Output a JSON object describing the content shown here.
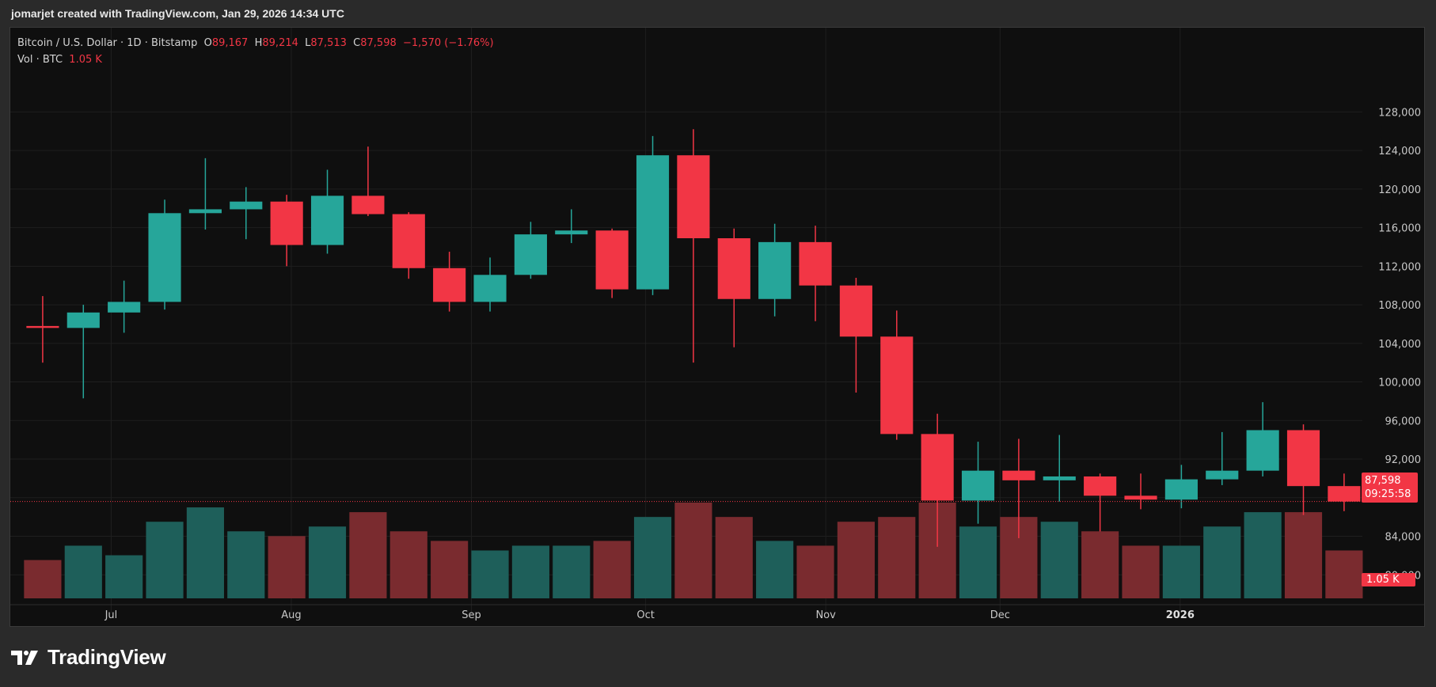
{
  "header": {
    "created_by": "jomarjet created with TradingView.com, Jan 29, 2026 14:34 UTC"
  },
  "legend": {
    "symbol": "Bitcoin / U.S. Dollar · 1D · Bitstamp",
    "open_label": "O",
    "open": "89,167",
    "high_label": "H",
    "high": "89,214",
    "low_label": "L",
    "low": "87,513",
    "close_label": "C",
    "close": "87,598",
    "change": "−1,570 (−1.76%)",
    "vol_label": "Vol · BTC",
    "vol": "1.05 K"
  },
  "price_badge": {
    "price": "87,598",
    "countdown": "09:25:58"
  },
  "vol_badge": "1.05 K",
  "footer": {
    "brand": "TradingView"
  },
  "colors": {
    "up": "#26a69a",
    "down": "#f23645",
    "vol_up": "#1e5f5a",
    "vol_down": "#7a2b2f"
  },
  "chart_data": {
    "type": "candlestick",
    "title": "Bitcoin / U.S. Dollar · 1D · Bitstamp",
    "ylim": [
      76000,
      130000
    ],
    "y_ticks": [
      "128,000",
      "124,000",
      "120,000",
      "116,000",
      "112,000",
      "108,000",
      "104,000",
      "100,000",
      "96,000",
      "92,000",
      "84,000",
      "80,000"
    ],
    "x_tick_labels": [
      {
        "label": "Jul",
        "date": "2025-07-01"
      },
      {
        "label": "Aug",
        "date": "2025-08-01"
      },
      {
        "label": "Sep",
        "date": "2025-09-01"
      },
      {
        "label": "Oct",
        "date": "2025-10-01"
      },
      {
        "label": "Nov",
        "date": "2025-11-01"
      },
      {
        "label": "Dec",
        "date": "2025-12-01"
      },
      {
        "label": "2026",
        "date": "2026-01-01"
      }
    ],
    "last_price": 87598,
    "weekly_closes": [
      {
        "date": "2025-06-16",
        "open": 105800,
        "high": 108900,
        "low": 102000,
        "close": 105600,
        "volume": 0.4
      },
      {
        "date": "2025-06-23",
        "open": 105600,
        "high": 108000,
        "low": 98300,
        "close": 107200,
        "volume": 0.55
      },
      {
        "date": "2025-06-30",
        "open": 107200,
        "high": 110500,
        "low": 105100,
        "close": 108300,
        "volume": 0.45
      },
      {
        "date": "2025-07-07",
        "open": 108300,
        "high": 118900,
        "low": 107500,
        "close": 117500,
        "volume": 0.8
      },
      {
        "date": "2025-07-14",
        "open": 117500,
        "high": 123200,
        "low": 115800,
        "close": 117900,
        "volume": 0.95
      },
      {
        "date": "2025-07-21",
        "open": 117900,
        "high": 120200,
        "low": 114800,
        "close": 118700,
        "volume": 0.7
      },
      {
        "date": "2025-07-28",
        "open": 118700,
        "high": 119400,
        "low": 112000,
        "close": 114200,
        "volume": 0.65
      },
      {
        "date": "2025-08-04",
        "open": 114200,
        "high": 122000,
        "low": 113300,
        "close": 119300,
        "volume": 0.75
      },
      {
        "date": "2025-08-11",
        "open": 119300,
        "high": 124400,
        "low": 117200,
        "close": 117400,
        "volume": 0.9
      },
      {
        "date": "2025-08-18",
        "open": 117400,
        "high": 117600,
        "low": 110700,
        "close": 111800,
        "volume": 0.7
      },
      {
        "date": "2025-08-25",
        "open": 111800,
        "high": 113500,
        "low": 107300,
        "close": 108300,
        "volume": 0.6
      },
      {
        "date": "2025-09-01",
        "open": 108300,
        "high": 112900,
        "low": 107300,
        "close": 111100,
        "volume": 0.5
      },
      {
        "date": "2025-09-08",
        "open": 111100,
        "high": 116600,
        "low": 110700,
        "close": 115300,
        "volume": 0.55
      },
      {
        "date": "2025-09-15",
        "open": 115300,
        "high": 117900,
        "low": 114400,
        "close": 115700,
        "volume": 0.55
      },
      {
        "date": "2025-09-22",
        "open": 115700,
        "high": 115900,
        "low": 108700,
        "close": 109600,
        "volume": 0.6
      },
      {
        "date": "2025-09-29",
        "open": 109600,
        "high": 125500,
        "low": 109000,
        "close": 123500,
        "volume": 0.85
      },
      {
        "date": "2025-10-06",
        "open": 123500,
        "high": 126200,
        "low": 102000,
        "close": 114900,
        "volume": 1.0
      },
      {
        "date": "2025-10-13",
        "open": 114900,
        "high": 115900,
        "low": 103600,
        "close": 108600,
        "volume": 0.85
      },
      {
        "date": "2025-10-20",
        "open": 108600,
        "high": 116400,
        "low": 106800,
        "close": 114500,
        "volume": 0.6
      },
      {
        "date": "2025-10-27",
        "open": 114500,
        "high": 116200,
        "low": 106300,
        "close": 110000,
        "volume": 0.55
      },
      {
        "date": "2025-11-03",
        "open": 110000,
        "high": 110800,
        "low": 98900,
        "close": 104700,
        "volume": 0.8
      },
      {
        "date": "2025-11-10",
        "open": 104700,
        "high": 107400,
        "low": 94000,
        "close": 94600,
        "volume": 0.85
      },
      {
        "date": "2025-11-17",
        "open": 94600,
        "high": 96700,
        "low": 82900,
        "close": 87700,
        "volume": 1.0
      },
      {
        "date": "2025-11-24",
        "open": 87700,
        "high": 93800,
        "low": 85300,
        "close": 90800,
        "volume": 0.75
      },
      {
        "date": "2025-12-01",
        "open": 90800,
        "high": 94100,
        "low": 83800,
        "close": 89800,
        "volume": 0.85
      },
      {
        "date": "2025-12-08",
        "open": 89800,
        "high": 94500,
        "low": 87600,
        "close": 90200,
        "volume": 0.8
      },
      {
        "date": "2025-12-15",
        "open": 90200,
        "high": 90500,
        "low": 84500,
        "close": 88200,
        "volume": 0.7
      },
      {
        "date": "2025-12-22",
        "open": 88200,
        "high": 90500,
        "low": 86800,
        "close": 87800,
        "volume": 0.55
      },
      {
        "date": "2025-12-29",
        "open": 87800,
        "high": 91400,
        "low": 86900,
        "close": 89900,
        "volume": 0.55
      },
      {
        "date": "2026-01-05",
        "open": 89900,
        "high": 94800,
        "low": 89300,
        "close": 90800,
        "volume": 0.75
      },
      {
        "date": "2026-01-12",
        "open": 90800,
        "high": 97900,
        "low": 90200,
        "close": 95000,
        "volume": 0.9
      },
      {
        "date": "2026-01-19",
        "open": 95000,
        "high": 95600,
        "low": 86200,
        "close": 89200,
        "volume": 0.9
      },
      {
        "date": "2026-01-26",
        "open": 89200,
        "high": 90500,
        "low": 86600,
        "close": 87598,
        "volume": 0.5
      }
    ]
  }
}
